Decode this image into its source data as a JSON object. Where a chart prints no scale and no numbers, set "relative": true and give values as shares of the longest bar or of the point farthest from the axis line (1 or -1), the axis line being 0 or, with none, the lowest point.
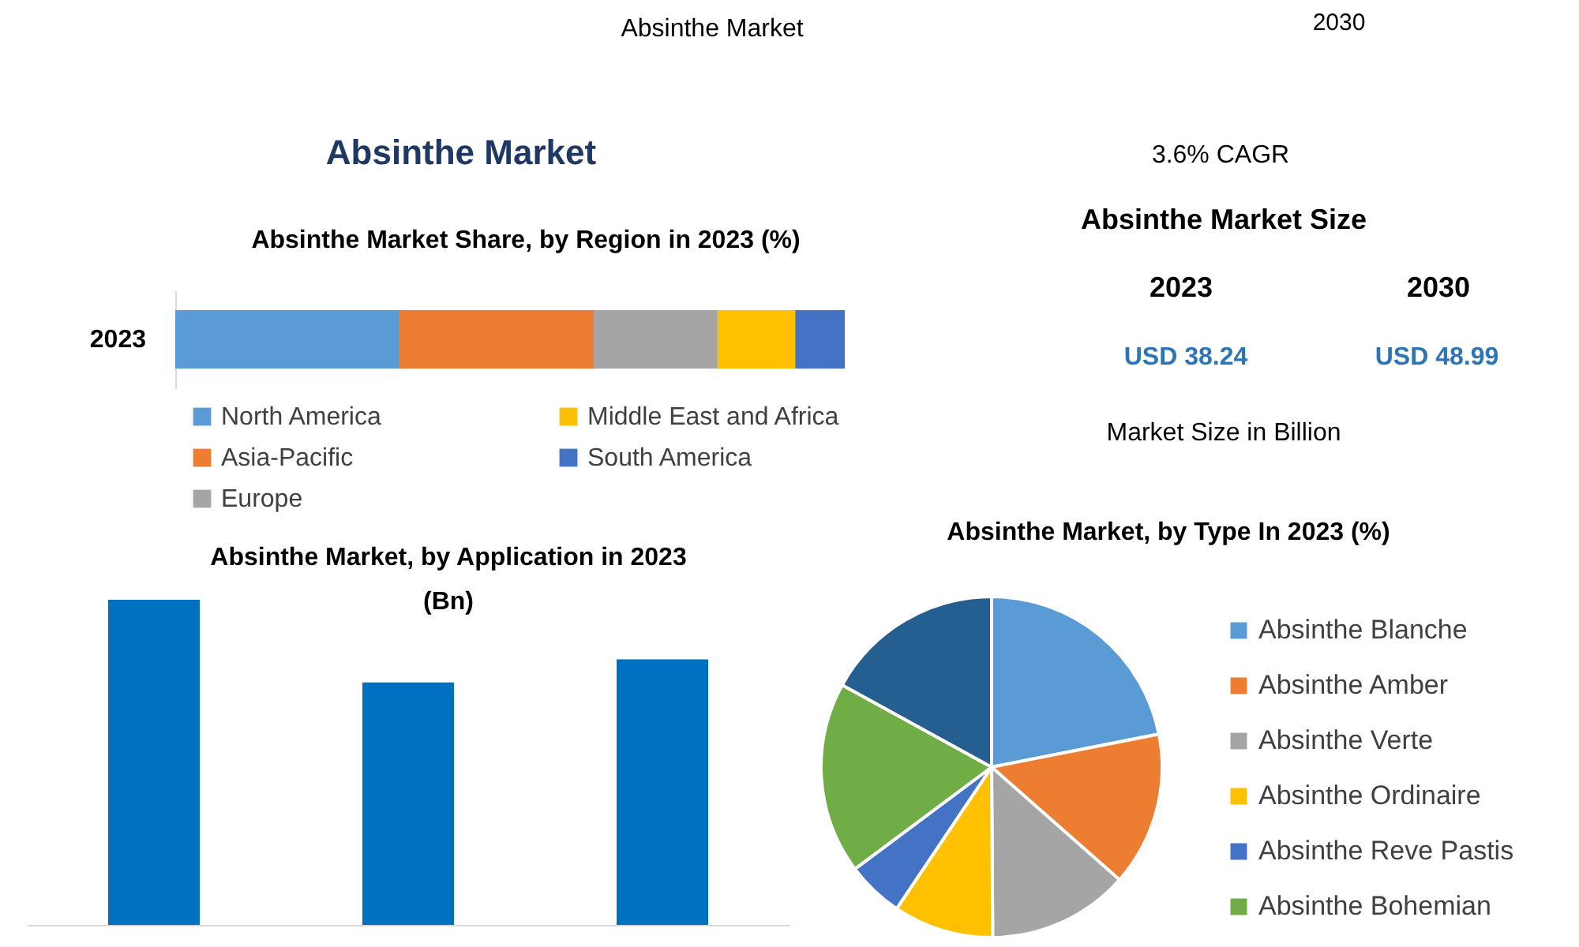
{
  "chart_data": [
    {
      "type": "other",
      "title": "Absinthe Market",
      "annotations": [
        "Absinthe Market",
        "2030"
      ]
    },
    {
      "type": "bar",
      "title": "Absinthe Market Share, by Region in 2023 (%)",
      "orientation": "horizontal",
      "stacked": true,
      "relative": true,
      "categories": [
        "2023"
      ],
      "legend": "bottom",
      "series": [
        {
          "name": "North America",
          "color": "#5b9bd5",
          "values": [
            0.335
          ]
        },
        {
          "name": "Asia-Pacific",
          "color": "#ed7d31",
          "values": [
            0.29
          ]
        },
        {
          "name": "Europe",
          "color": "#a5a5a5",
          "values": [
            0.185
          ]
        },
        {
          "name": "Middle East and Africa",
          "color": "#ffc000",
          "values": [
            0.116
          ]
        },
        {
          "name": "South America",
          "color": "#4472c4",
          "values": [
            0.074
          ]
        }
      ]
    },
    {
      "type": "other",
      "annotations": [
        "3.6% CAGR",
        "Absinthe Market Size",
        "2023",
        "2030",
        "USD 38.24",
        "USD 48.99",
        "Market Size in Billion"
      ]
    },
    {
      "type": "bar",
      "title": "Absinthe Market, by Application in 2023 (Bn)",
      "relative": true,
      "categories": [
        null,
        null,
        null
      ],
      "values": [
        1,
        0.746,
        0.817
      ],
      "color": "#0070c0"
    },
    {
      "type": "pie",
      "title": "Absinthe Market, by Type In 2023 (%)",
      "legend": "right",
      "categories": [
        "Absinthe Blanche",
        "Absinthe Amber",
        "Absinthe Verte",
        "Absinthe Ordinaire",
        "Absinthe Reve Pastis",
        "Absinthe Bohemian",
        null
      ],
      "values": [
        21.9,
        14.6,
        13.4,
        9.5,
        5.4,
        18.2,
        17.0
      ],
      "colors": [
        "#5b9bd5",
        "#ed7d31",
        "#a5a5a5",
        "#ffc000",
        "#4472c4",
        "#70ad47",
        "#255e91"
      ]
    }
  ]
}
